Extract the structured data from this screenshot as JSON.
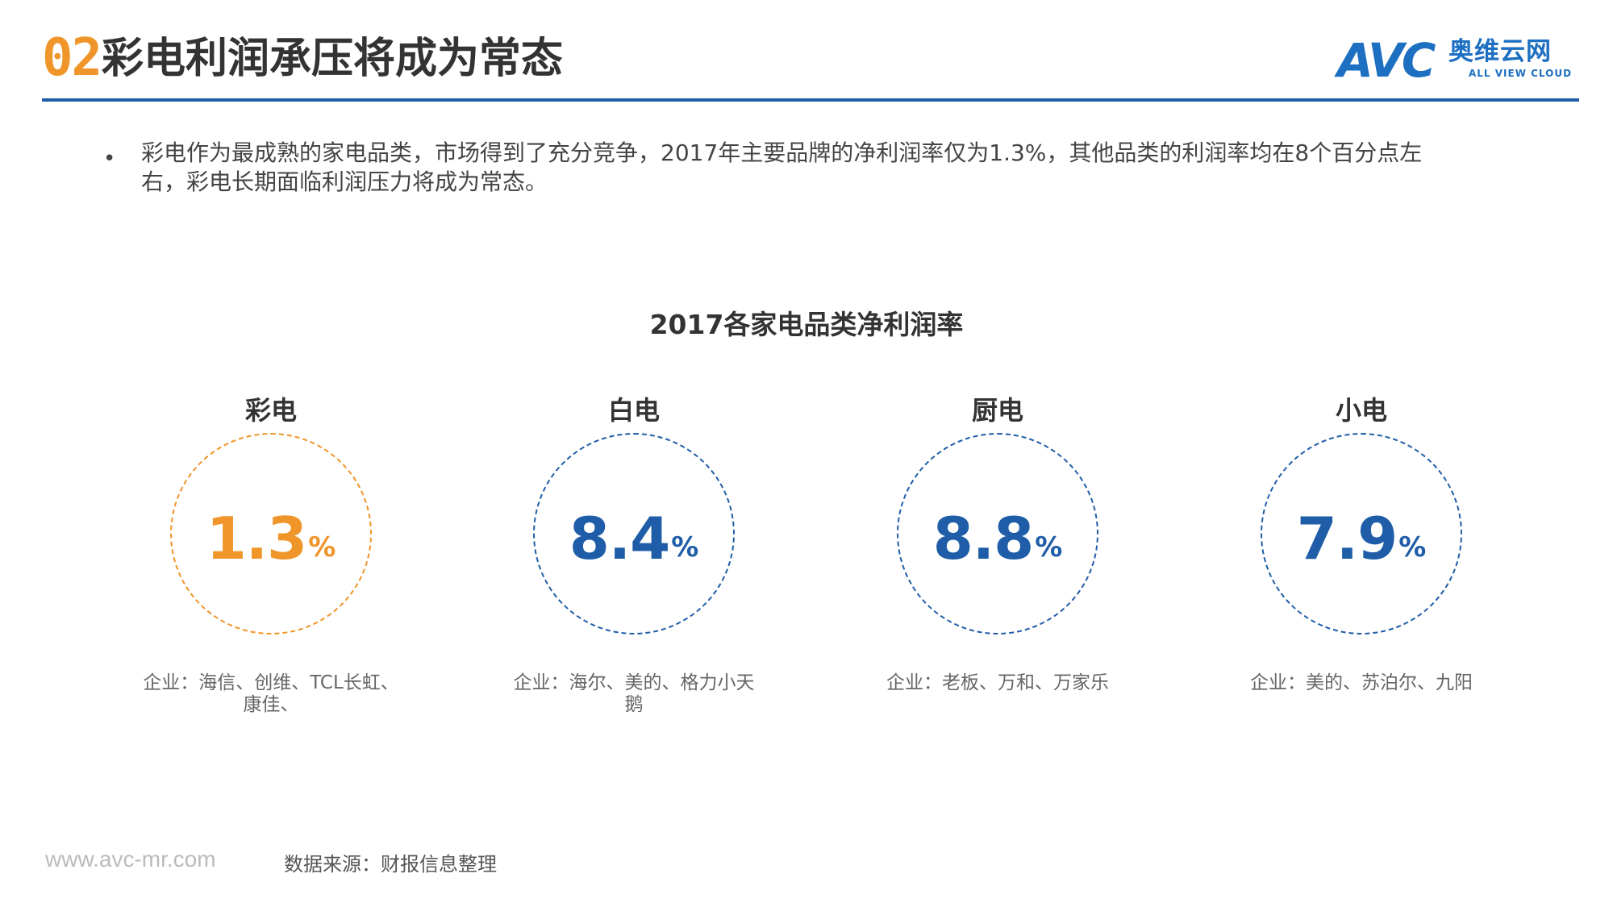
{
  "header": {
    "number": "02",
    "title": "彩电利润承压将成为常态"
  },
  "logo": {
    "mark": "AVC",
    "name_cn": "奥维云网",
    "name_en": "ALL VIEW CLOUD"
  },
  "colors": {
    "accent_orange": "#F0952A",
    "accent_blue": "#1F5DA8",
    "rule": "#1F5DA8"
  },
  "bullet": {
    "text": "彩电作为最成熟的家电品类，市场得到了充分竞争，2017年主要品牌的净利润率仅为1.3%，其他品类的利润率均在8个百分点左右，彩电长期面临利润压力将成为常态。"
  },
  "chart_data": {
    "type": "table",
    "title": "2017各家电品类净利润率",
    "categories": [
      "彩电",
      "白电",
      "厨电",
      "小电"
    ],
    "values": [
      1.3,
      8.4,
      8.8,
      7.9
    ],
    "unit": "%",
    "companies": [
      "企业：海信、创维、TCL长虹、康佳、",
      "企业：海尔、美的、格力小天鹅",
      "企业：老板、万和、万家乐",
      "企业：美的、苏泊尔、九阳"
    ],
    "highlight_color": "#F0952A",
    "default_color": "#1F5DA8"
  },
  "footer": {
    "url": "www.avc-mr.com",
    "source": "数据来源：财报信息整理"
  }
}
